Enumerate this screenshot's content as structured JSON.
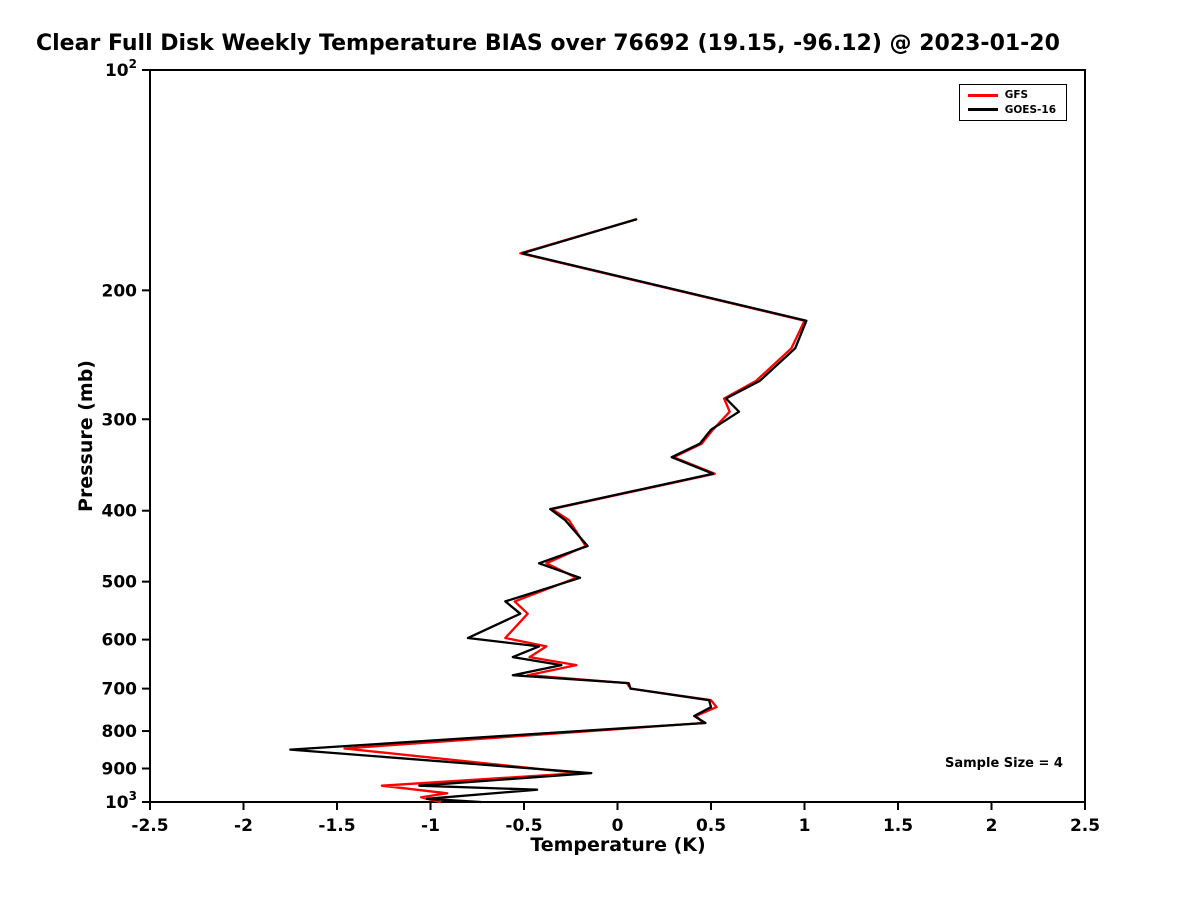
{
  "chart_data": {
    "type": "line",
    "title": "Clear Full Disk Weekly Temperature BIAS over 76692 (19.15, -96.12) @ 2023-01-20",
    "xlabel": "Temperature (K)",
    "ylabel": "Pressure (mb)",
    "annotation": "Sample Size = 4",
    "xlim": [
      -2.5,
      2.5
    ],
    "ylim": [
      100,
      1000
    ],
    "y_axis_scale": "log10-inverted",
    "grid": false,
    "legend_position": "top-right",
    "x_ticks": [
      -2.5,
      -2,
      -1.5,
      -1,
      -0.5,
      0,
      0.5,
      1,
      1.5,
      2,
      2.5
    ],
    "x_tick_labels": [
      "-2.5",
      "-2",
      "-1.5",
      "-1",
      "-0.5",
      "0",
      "0.5",
      "1",
      "1.5",
      "2",
      "2.5"
    ],
    "y_ticks": [
      {
        "value": 100,
        "label": "10",
        "exp": "2"
      },
      {
        "value": 200,
        "label": "200"
      },
      {
        "value": 300,
        "label": "300"
      },
      {
        "value": 400,
        "label": "400"
      },
      {
        "value": 500,
        "label": "500"
      },
      {
        "value": 600,
        "label": "600"
      },
      {
        "value": 700,
        "label": "700"
      },
      {
        "value": 800,
        "label": "800"
      },
      {
        "value": 900,
        "label": "900"
      },
      {
        "value": 1000,
        "label": "10",
        "exp": "3"
      }
    ],
    "series": [
      {
        "name": "GFS",
        "color": "#ff0000",
        "pressure_mb": [
          160,
          178,
          220,
          240,
          266,
          281,
          293,
          310,
          324,
          338,
          356,
          398,
          412,
          447,
          472,
          494,
          532,
          553,
          597,
          613,
          634,
          650,
          671,
          688,
          700,
          726,
          742,
          763,
          780,
          845,
          913,
          950,
          973,
          985,
          1000
        ],
        "temperature_k": [
          0.1,
          -0.52,
          1.0,
          0.93,
          0.74,
          0.57,
          0.6,
          0.51,
          0.45,
          0.3,
          0.52,
          -0.35,
          -0.26,
          -0.17,
          -0.38,
          -0.22,
          -0.55,
          -0.48,
          -0.6,
          -0.38,
          -0.47,
          -0.22,
          -0.48,
          0.05,
          0.07,
          0.5,
          0.53,
          0.42,
          0.46,
          -1.46,
          -0.21,
          -1.26,
          -0.91,
          -1.05,
          -0.95
        ]
      },
      {
        "name": "GOES-16",
        "color": "#000000",
        "pressure_mb": [
          160,
          178,
          220,
          240,
          266,
          281,
          293,
          310,
          324,
          338,
          356,
          398,
          412,
          447,
          472,
          494,
          532,
          553,
          597,
          613,
          634,
          650,
          671,
          688,
          700,
          726,
          742,
          763,
          780,
          848,
          913,
          950,
          962,
          990,
          1000
        ],
        "temperature_k": [
          0.1,
          -0.51,
          1.01,
          0.95,
          0.76,
          0.58,
          0.65,
          0.5,
          0.44,
          0.29,
          0.51,
          -0.36,
          -0.28,
          -0.16,
          -0.42,
          -0.2,
          -0.6,
          -0.52,
          -0.8,
          -0.42,
          -0.56,
          -0.3,
          -0.56,
          0.06,
          0.07,
          0.49,
          0.5,
          0.41,
          0.47,
          -1.75,
          -0.14,
          -1.06,
          -0.43,
          -1.02,
          -0.73
        ]
      }
    ]
  }
}
